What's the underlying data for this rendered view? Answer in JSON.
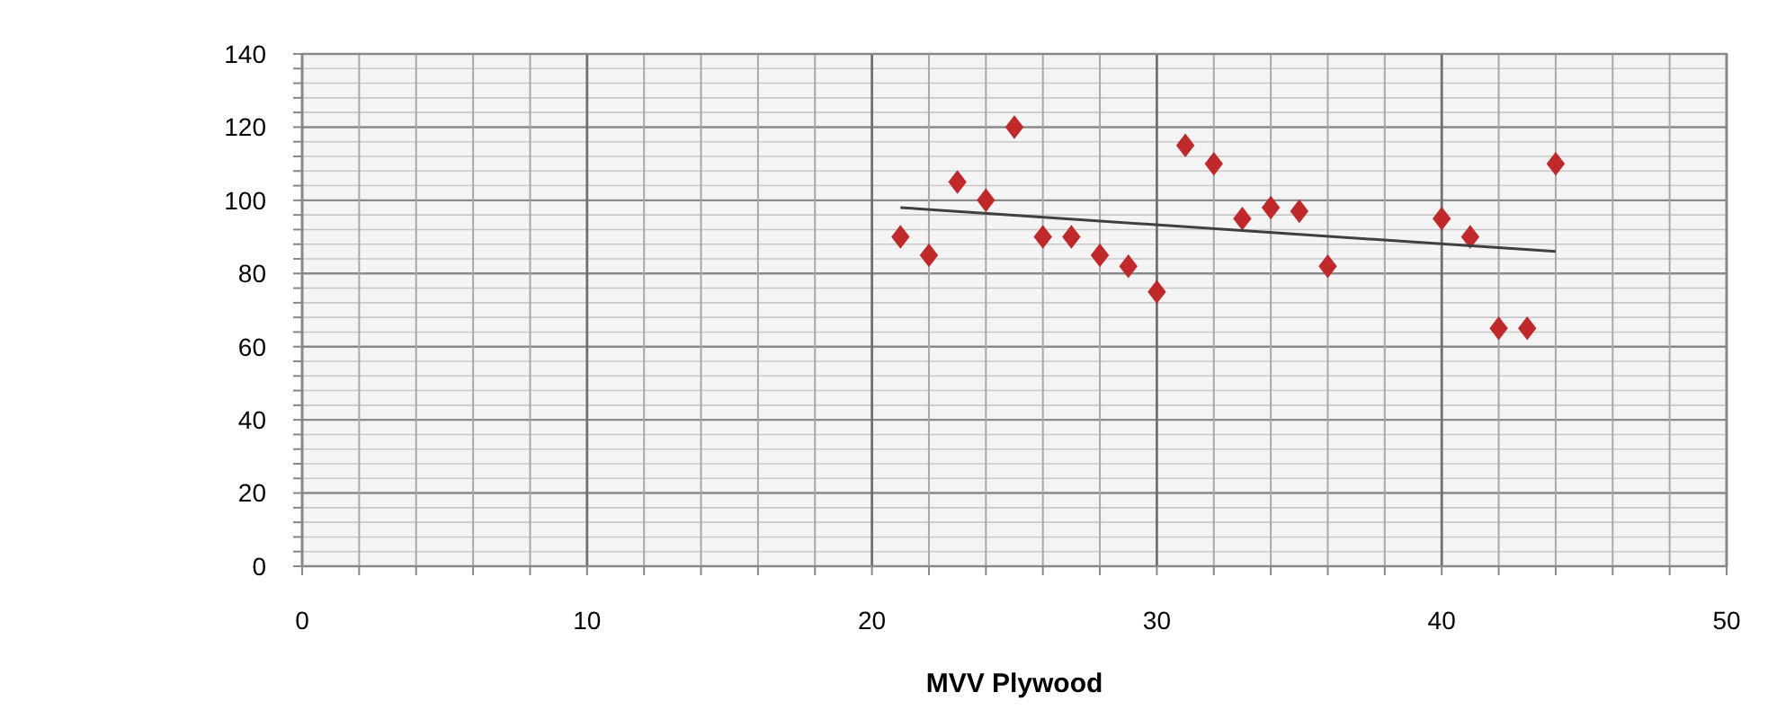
{
  "chart_data": {
    "type": "scatter",
    "xlabel": "MVV Plywood",
    "xlim": [
      0,
      50
    ],
    "ylim": [
      0,
      140
    ],
    "xticks": [
      0,
      {
        "value": 2,
        "label": null
      },
      {
        "value": 4,
        "label": null
      },
      {
        "value": 6,
        "label": null
      },
      {
        "value": 8,
        "label": null
      },
      10,
      {
        "value": 12,
        "label": null
      },
      {
        "value": 14,
        "label": null
      },
      {
        "value": 16,
        "label": null
      },
      {
        "value": 18,
        "label": null
      },
      20,
      {
        "value": 22,
        "label": null
      },
      {
        "value": 24,
        "label": null
      },
      {
        "value": 26,
        "label": null
      },
      {
        "value": 28,
        "label": null
      },
      30,
      {
        "value": 32,
        "label": null
      },
      {
        "value": 34,
        "label": null
      },
      {
        "value": 36,
        "label": null
      },
      {
        "value": 38,
        "label": null
      },
      40,
      {
        "value": 42,
        "label": null
      },
      {
        "value": 44,
        "label": null
      },
      {
        "value": 46,
        "label": null
      },
      {
        "value": 48,
        "label": null
      },
      50
    ],
    "yticks": [
      0,
      {
        "value": 4,
        "label": null
      },
      {
        "value": 8,
        "label": null
      },
      {
        "value": 12,
        "label": null
      },
      {
        "value": 16,
        "label": null
      },
      20,
      {
        "value": 24,
        "label": null
      },
      {
        "value": 28,
        "label": null
      },
      {
        "value": 32,
        "label": null
      },
      {
        "value": 36,
        "label": null
      },
      40,
      {
        "value": 44,
        "label": null
      },
      {
        "value": 48,
        "label": null
      },
      {
        "value": 52,
        "label": null
      },
      {
        "value": 56,
        "label": null
      },
      60,
      {
        "value": 64,
        "label": null
      },
      {
        "value": 68,
        "label": null
      },
      {
        "value": 72,
        "label": null
      },
      {
        "value": 76,
        "label": null
      },
      80,
      {
        "value": 84,
        "label": null
      },
      {
        "value": 88,
        "label": null
      },
      {
        "value": 92,
        "label": null
      },
      {
        "value": 96,
        "label": null
      },
      100,
      {
        "value": 104,
        "label": null
      },
      {
        "value": 108,
        "label": null
      },
      {
        "value": 112,
        "label": null
      },
      {
        "value": 116,
        "label": null
      },
      120,
      {
        "value": 124,
        "label": null
      },
      {
        "value": 128,
        "label": null
      },
      {
        "value": 132,
        "label": null
      },
      {
        "value": 136,
        "label": null
      },
      140
    ],
    "grid": true,
    "marker": "diamond",
    "series": [
      {
        "color": "#c0282a",
        "x": [
          21,
          22,
          23,
          24,
          25,
          26,
          27,
          28,
          29,
          30,
          31,
          32,
          33,
          34,
          35,
          36,
          40,
          41,
          42,
          43,
          44
        ],
        "values": [
          90,
          85,
          105,
          100,
          120,
          90,
          90,
          85,
          82,
          75,
          115,
          110,
          95,
          98,
          97,
          82,
          95,
          90,
          65,
          65,
          110
        ]
      },
      {
        "type": "line",
        "color": "#404040",
        "line_style": "solid",
        "marker": "none",
        "x": [
          21,
          44
        ],
        "values": [
          98,
          86
        ]
      }
    ]
  }
}
